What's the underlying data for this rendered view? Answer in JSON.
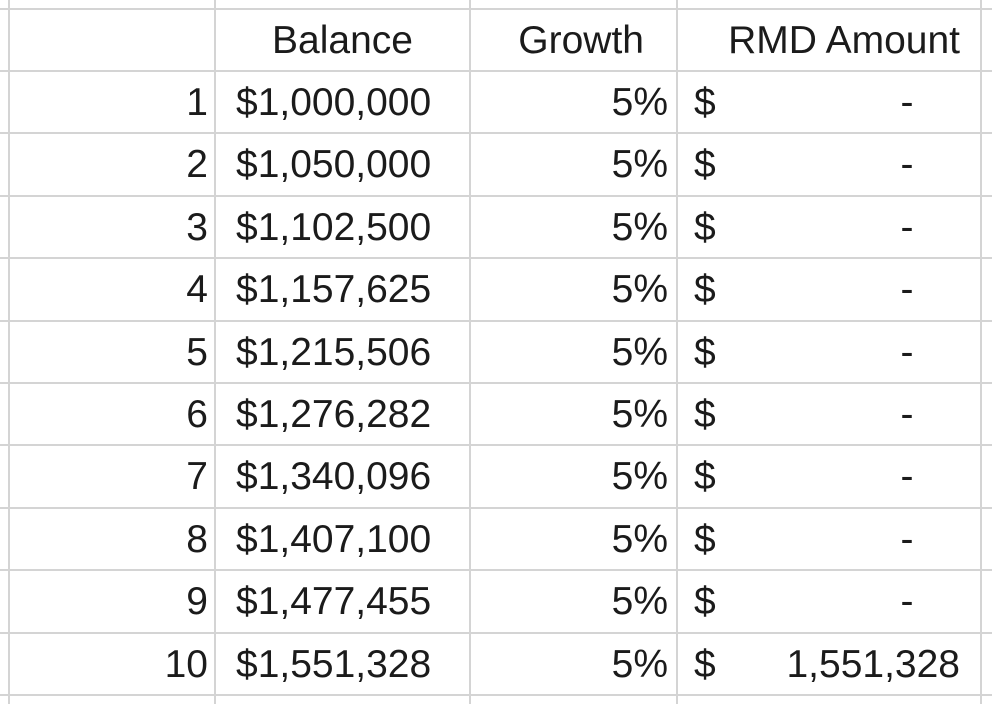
{
  "table": {
    "headers": {
      "balance": "Balance",
      "growth": "Growth",
      "rmd": "RMD Amount"
    },
    "rows": [
      {
        "n": "1",
        "balance": "$1,000,000",
        "growth": "5%",
        "currency": "$",
        "rmd": "-"
      },
      {
        "n": "2",
        "balance": "$1,050,000",
        "growth": "5%",
        "currency": "$",
        "rmd": "-"
      },
      {
        "n": "3",
        "balance": "$1,102,500",
        "growth": "5%",
        "currency": "$",
        "rmd": "-"
      },
      {
        "n": "4",
        "balance": "$1,157,625",
        "growth": "5%",
        "currency": "$",
        "rmd": "-"
      },
      {
        "n": "5",
        "balance": "$1,215,506",
        "growth": "5%",
        "currency": "$",
        "rmd": "-"
      },
      {
        "n": "6",
        "balance": "$1,276,282",
        "growth": "5%",
        "currency": "$",
        "rmd": "-"
      },
      {
        "n": "7",
        "balance": "$1,340,096",
        "growth": "5%",
        "currency": "$",
        "rmd": "-"
      },
      {
        "n": "8",
        "balance": "$1,407,100",
        "growth": "5%",
        "currency": "$",
        "rmd": "-"
      },
      {
        "n": "9",
        "balance": "$1,477,455",
        "growth": "5%",
        "currency": "$",
        "rmd": "-"
      },
      {
        "n": "10",
        "balance": "$1,551,328",
        "growth": "5%",
        "currency": "$",
        "rmd": "1,551,328"
      }
    ]
  }
}
